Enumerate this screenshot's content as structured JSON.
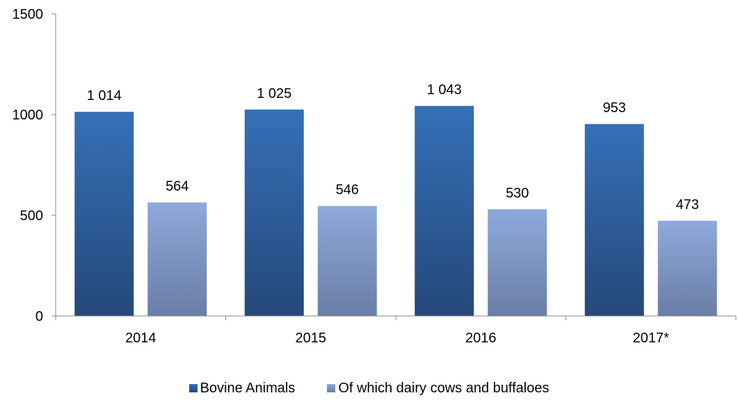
{
  "chart_data": {
    "type": "bar",
    "categories": [
      "2014",
      "2015",
      "2016",
      "2017*"
    ],
    "series": [
      {
        "name": "Bovine Animals",
        "values": [
          1014,
          1025,
          1043,
          953
        ],
        "labels": [
          "1 014",
          "1 025",
          "1 043",
          "953"
        ],
        "color_top": "#3570b8",
        "color_bottom": "#25487a"
      },
      {
        "name": "Of which dairy cows and buffaloes",
        "values": [
          564,
          546,
          530,
          473
        ],
        "labels": [
          "564",
          "546",
          "530",
          "473"
        ],
        "color_top": "#8eaadb",
        "color_bottom": "#6a7ea6"
      }
    ],
    "y_ticks": [
      0,
      500,
      1000,
      1500
    ],
    "y_tick_labels": [
      "0",
      "500",
      "1000",
      "1500"
    ],
    "ylim": [
      0,
      1500
    ],
    "grid": false,
    "legend_position": "bottom",
    "title": "",
    "xlabel": "",
    "ylabel": ""
  }
}
